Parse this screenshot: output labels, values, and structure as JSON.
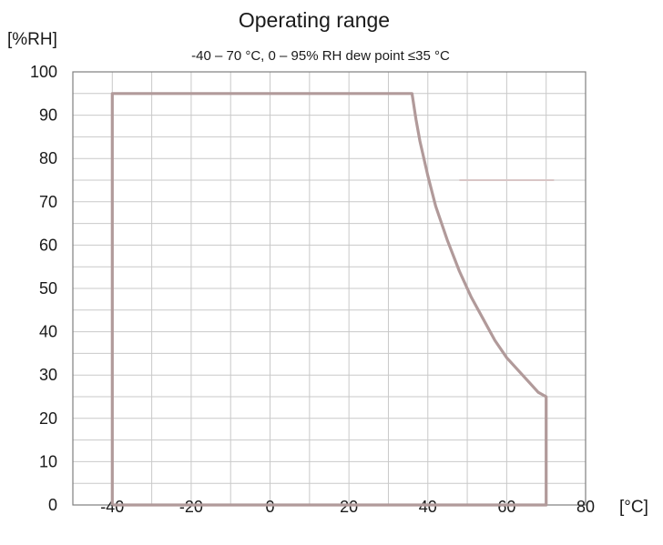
{
  "chart_data": {
    "type": "area",
    "title": "Operating range",
    "subtitle": "-40 – 70 °C, 0 – 95% RH dew point ≤35 °C",
    "xlabel": "[°C]",
    "ylabel": "[%RH]",
    "xlim": [
      -50,
      80
    ],
    "ylim": [
      0,
      100
    ],
    "x_ticks": [
      -40,
      -20,
      0,
      20,
      40,
      60,
      80
    ],
    "y_ticks": [
      0,
      10,
      20,
      30,
      40,
      50,
      60,
      70,
      80,
      90,
      100
    ],
    "x_tick_labels": [
      "-40",
      "-20",
      "0",
      "20",
      "40",
      "60",
      "80"
    ],
    "y_tick_labels": [
      "0",
      "10",
      "20",
      "30",
      "40",
      "50",
      "60",
      "70",
      "80",
      "90",
      "100"
    ],
    "x_grid_step": 10,
    "y_grid_step": 5,
    "grid": true,
    "series": [
      {
        "values": [
          {
            "x": -40,
            "y": 0
          },
          {
            "x": -40,
            "y": 95
          },
          {
            "x": 36,
            "y": 95
          },
          {
            "x": 37,
            "y": 89
          },
          {
            "x": 38,
            "y": 84
          },
          {
            "x": 40,
            "y": 76
          },
          {
            "x": 42,
            "y": 69
          },
          {
            "x": 45,
            "y": 61
          },
          {
            "x": 48,
            "y": 54
          },
          {
            "x": 51,
            "y": 48
          },
          {
            "x": 54,
            "y": 43
          },
          {
            "x": 57,
            "y": 38
          },
          {
            "x": 60,
            "y": 34
          },
          {
            "x": 63,
            "y": 31
          },
          {
            "x": 66,
            "y": 28
          },
          {
            "x": 68,
            "y": 26
          },
          {
            "x": 70,
            "y": 25
          },
          {
            "x": 70,
            "y": 0
          },
          {
            "x": -40,
            "y": 0
          }
        ],
        "color": "#b19a9a"
      }
    ],
    "annotations": [
      {
        "x": [
          48,
          72
        ],
        "y": 75,
        "color": "#d9c6c6"
      }
    ]
  }
}
